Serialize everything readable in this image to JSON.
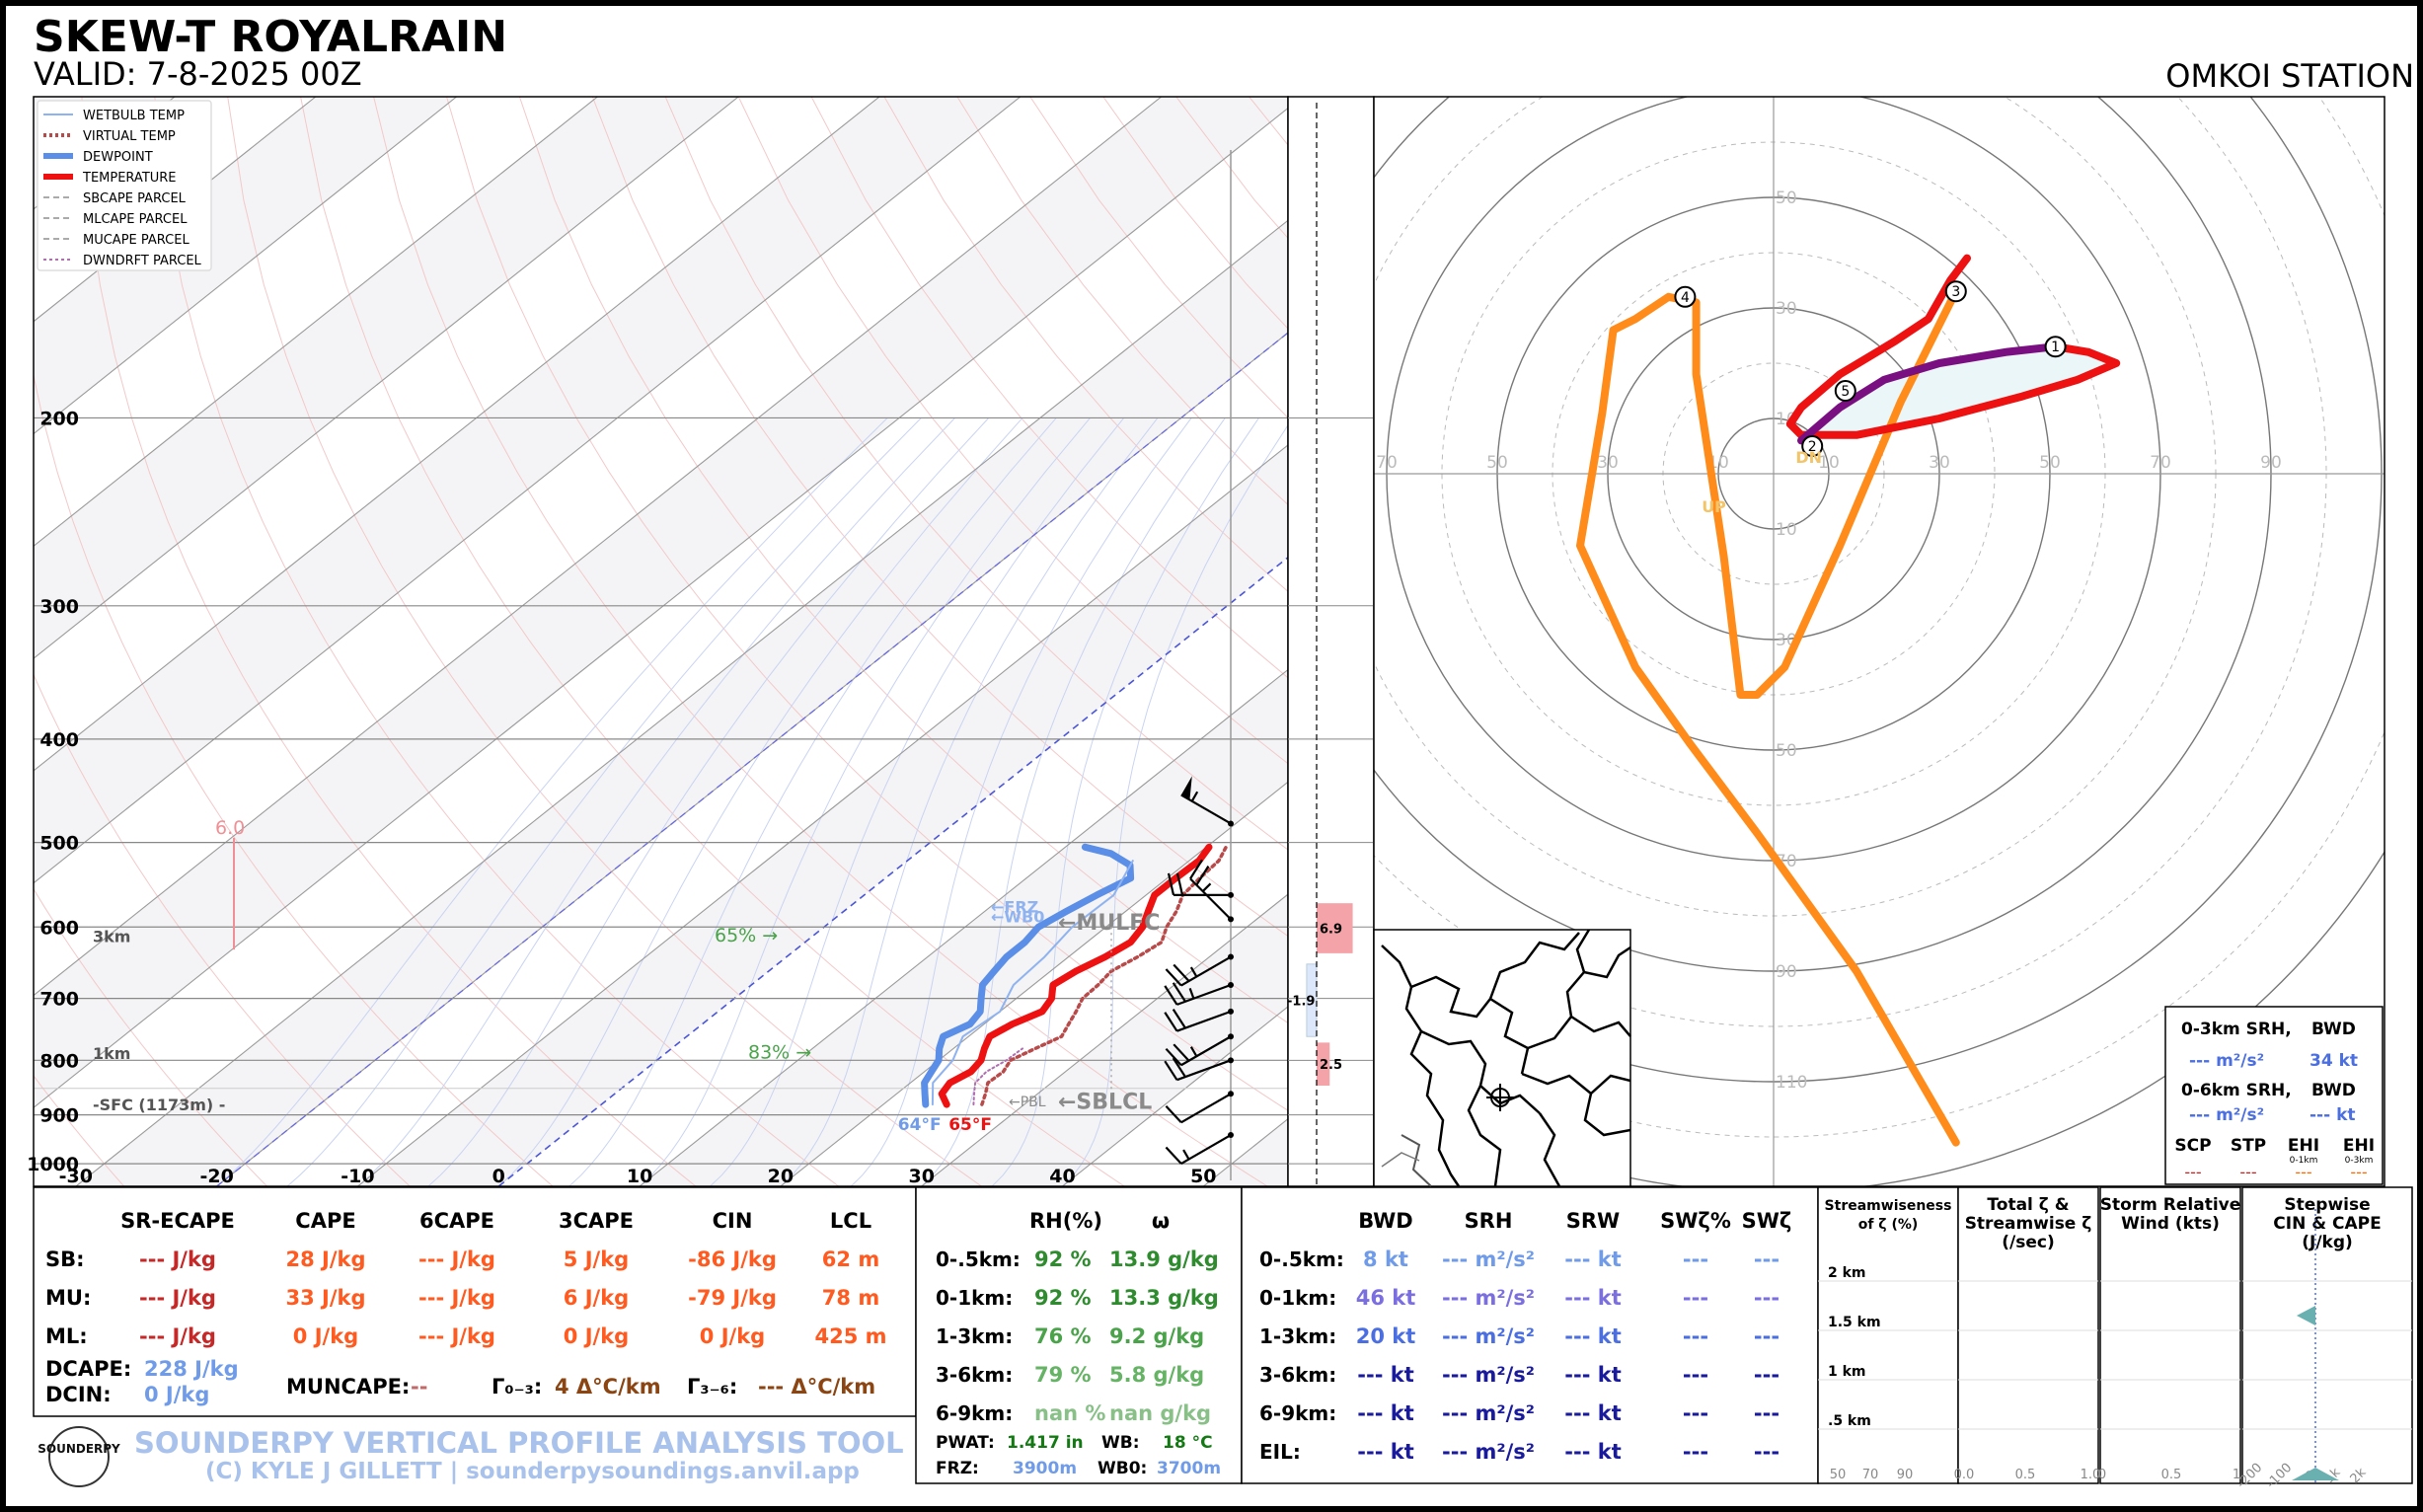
{
  "header": {
    "title": "SKEW-T ROYALRAIN",
    "valid": "VALID: 7-8-2025 00Z",
    "station": "OMKOI STATION"
  },
  "legend": [
    {
      "label": "WETBULB TEMP",
      "color": "#8fb3f0",
      "style": "solid",
      "width": 2
    },
    {
      "label": "VIRTUAL TEMP",
      "color": "#b84a4a",
      "style": "dotted",
      "width": 4
    },
    {
      "label": "DEWPOINT",
      "color": "#5b8ee6",
      "style": "solid",
      "width": 6
    },
    {
      "label": "TEMPERATURE",
      "color": "#ee1111",
      "style": "solid",
      "width": 6
    },
    {
      "label": "SBCAPE PARCEL",
      "color": "#aaaaaa",
      "style": "dashed",
      "width": 2
    },
    {
      "label": "MLCAPE PARCEL",
      "color": "#aaaaaa",
      "style": "dashed",
      "width": 2
    },
    {
      "label": "MUCAPE PARCEL",
      "color": "#aaaaaa",
      "style": "dashed",
      "width": 2
    },
    {
      "label": "DWNDRFT PARCEL",
      "color": "#b070b0",
      "style": "dotted",
      "width": 2
    }
  ],
  "chart_data": [
    {
      "type": "line",
      "chart": "skew-t",
      "pressure_ticks": [
        200,
        300,
        400,
        500,
        600,
        700,
        800,
        900,
        1000
      ],
      "temp_ticks": [
        -30,
        -20,
        -10,
        0,
        10,
        20,
        30,
        40,
        50
      ],
      "xlim": [
        -33,
        56
      ],
      "ylim": [
        1050,
        100
      ],
      "skew_deg_per_decade": 95,
      "series": [
        {
          "name": "TEMPERATURE",
          "color": "#ee1111",
          "points": [
            [
              880,
              24.5
            ],
            [
              860,
              23.2
            ],
            [
              840,
              22.8
            ],
            [
              820,
              23.3
            ],
            [
              800,
              23.0
            ],
            [
              780,
              22.2
            ],
            [
              760,
              21.5
            ],
            [
              740,
              22.0
            ],
            [
              720,
              23.0
            ],
            [
              700,
              22.5
            ],
            [
              680,
              21.4
            ],
            [
              660,
              21.8
            ],
            [
              640,
              22.6
            ],
            [
              620,
              23.1
            ],
            [
              600,
              22.6
            ],
            [
              580,
              21.6
            ],
            [
              560,
              20.6
            ],
            [
              540,
              20.6
            ],
            [
              520,
              20.7
            ],
            [
              505,
              20.2
            ]
          ]
        },
        {
          "name": "DEWPOINT",
          "color": "#5b8ee6",
          "points": [
            [
              880,
              23.0
            ],
            [
              860,
              22.0
            ],
            [
              840,
              21.0
            ],
            [
              820,
              20.5
            ],
            [
              800,
              20.0
            ],
            [
              780,
              19.0
            ],
            [
              760,
              18.2
            ],
            [
              740,
              19.0
            ],
            [
              720,
              18.6
            ],
            [
              700,
              17.5
            ],
            [
              680,
              16.4
            ],
            [
              660,
              16.0
            ],
            [
              640,
              15.6
            ],
            [
              620,
              15.6
            ],
            [
              600,
              15.2
            ],
            [
              580,
              15.8
            ],
            [
              560,
              16.5
            ],
            [
              540,
              17.4
            ],
            [
              525,
              16.2
            ],
            [
              512,
              13.8
            ],
            [
              505,
              11.4
            ]
          ]
        },
        {
          "name": "WETBULB TEMP",
          "color": "#8fb3f0",
          "points": [
            [
              880,
              23.5
            ],
            [
              840,
              21.6
            ],
            [
              800,
              21.0
            ],
            [
              760,
              19.6
            ],
            [
              720,
              20.0
            ],
            [
              680,
              18.6
            ],
            [
              640,
              18.3
            ],
            [
              600,
              17.6
            ],
            [
              560,
              17.7
            ],
            [
              520,
              16.0
            ]
          ]
        },
        {
          "name": "VIRTUAL TEMP",
          "color": "#b84a4a",
          "points": [
            [
              880,
              27.0
            ],
            [
              860,
              26.3
            ],
            [
              840,
              25.5
            ],
            [
              820,
              25.6
            ],
            [
              800,
              25.1
            ],
            [
              780,
              25.8
            ],
            [
              760,
              26.6
            ],
            [
              740,
              26.0
            ],
            [
              720,
              25.4
            ],
            [
              700,
              24.7
            ],
            [
              680,
              24.6
            ],
            [
              660,
              24.3
            ],
            [
              640,
              24.9
            ],
            [
              620,
              25.3
            ],
            [
              600,
              24.3
            ],
            [
              580,
              23.6
            ],
            [
              560,
              22.6
            ],
            [
              540,
              22.3
            ],
            [
              520,
              22.1
            ],
            [
              505,
              21.4
            ]
          ]
        },
        {
          "name": "DWNDRFT PARCEL",
          "color": "#b070b0",
          "points": [
            [
              880,
              26.4
            ],
            [
              860,
              25.5
            ],
            [
              840,
              24.6
            ],
            [
              820,
              24.4
            ],
            [
              800,
              24.8
            ],
            [
              780,
              24.9
            ]
          ]
        }
      ],
      "surface_labels": {
        "temp": "65°F",
        "dew": "64°F"
      },
      "height_labels": [
        {
          "label": "3km",
          "p": 612
        },
        {
          "label": "1km",
          "p": 788
        },
        {
          "label": "-SFC (1173m) -",
          "p": 880
        }
      ],
      "rh_labels": [
        {
          "label": "65% →",
          "p": 611
        },
        {
          "label": "83% →",
          "p": 787
        }
      ],
      "level_labels": [
        {
          "label": "←FRZ",
          "p": 575
        },
        {
          "label": "←WB0",
          "p": 587
        },
        {
          "label": "←MULFC",
          "p": 594
        },
        {
          "label": "←PBL",
          "p": 875
        },
        {
          "label": "←SBLCL",
          "p": 875
        }
      ],
      "lapse_marker": {
        "value": "6.0",
        "p_top": 495,
        "p_bot": 630
      },
      "wind_barbs": [
        {
          "p": 480,
          "kt": 55,
          "dir": 300
        },
        {
          "p": 560,
          "kt": 20,
          "dir": 270
        },
        {
          "p": 590,
          "kt": 25,
          "dir": 315
        },
        {
          "p": 640,
          "kt": 25,
          "dir": 240
        },
        {
          "p": 680,
          "kt": 25,
          "dir": 250
        },
        {
          "p": 720,
          "kt": 20,
          "dir": 250
        },
        {
          "p": 760,
          "kt": 25,
          "dir": 240
        },
        {
          "p": 800,
          "kt": 20,
          "dir": 250
        },
        {
          "p": 860,
          "kt": 10,
          "dir": 240
        },
        {
          "p": 940,
          "kt": 15,
          "dir": 240
        }
      ]
    },
    {
      "type": "bar",
      "chart": "lapse-rate-strip",
      "bars": [
        {
          "p_top": 570,
          "p_bot": 635,
          "value": 6.9,
          "label": "6.9",
          "color": "#f4a3a8"
        },
        {
          "p_top": 650,
          "p_bot": 760,
          "value": -1.9,
          "label": "-1.9",
          "color": "#dce7fb"
        },
        {
          "p_top": 770,
          "p_bot": 845,
          "value": 2.5,
          "label": "2.5",
          "color": "#f4a3a8"
        }
      ]
    },
    {
      "type": "line",
      "chart": "hodograph",
      "ring_labels": [
        "10",
        "30",
        "50",
        "70",
        "90",
        "110"
      ],
      "axis_labels": [
        "70",
        "50",
        "30",
        "10",
        "10",
        "30",
        "50",
        "70",
        "90"
      ],
      "ylabels": [
        "50",
        "30",
        "10",
        "10",
        "30",
        "50",
        "70",
        "90",
        "110"
      ],
      "xlim": [
        -73,
        113
      ],
      "ylim": [
        -118,
        56
      ],
      "series": [
        {
          "name": "0-1 km",
          "color": "#7a0f82",
          "points": [
            [
              5,
              6
            ],
            [
              12,
              12
            ],
            [
              20,
              17
            ],
            [
              30,
              20
            ],
            [
              42,
              22
            ],
            [
              51,
              23
            ]
          ]
        },
        {
          "name": "1-3 km",
          "color": "#ee1111",
          "points": [
            [
              51,
              23
            ],
            [
              57,
              22
            ],
            [
              62,
              20
            ],
            [
              55,
              17
            ],
            [
              45,
              14
            ],
            [
              30,
              10
            ],
            [
              15,
              7
            ],
            [
              5,
              7
            ],
            [
              3,
              9
            ],
            [
              5,
              12
            ],
            [
              12,
              18
            ],
            [
              22,
              24
            ],
            [
              28,
              28
            ],
            [
              32,
              35
            ],
            [
              35,
              39
            ]
          ]
        },
        {
          "name": "storm motion",
          "color": "#ff8c1a",
          "points": [
            [
              33,
              33
            ],
            [
              23,
              13
            ],
            [
              12,
              -13
            ],
            [
              2,
              -35
            ],
            [
              -3,
              -40
            ],
            [
              -6,
              -40
            ],
            [
              -9,
              -15
            ],
            [
              -14,
              18
            ],
            [
              -14,
              31
            ],
            [
              -19,
              32
            ],
            [
              -25,
              28
            ],
            [
              -29,
              26
            ],
            [
              -31,
              11
            ],
            [
              -35,
              -13
            ],
            [
              -25,
              -35
            ],
            [
              -15,
              -49
            ],
            [
              -3,
              -65
            ],
            [
              15,
              -90
            ],
            [
              33,
              -121
            ]
          ]
        }
      ],
      "markers": [
        {
          "label": "1",
          "u": 51,
          "v": 23
        },
        {
          "label": "2",
          "u": 7,
          "v": 5
        },
        {
          "label": "3",
          "u": 33,
          "v": 33
        },
        {
          "label": "4",
          "u": -16,
          "v": 32
        },
        {
          "label": "5",
          "u": 13,
          "v": 15
        }
      ],
      "motion_labels": {
        "up": "UP",
        "dn": "DN"
      }
    }
  ],
  "hodo_table": {
    "row1_label": "0-3km SRH,",
    "row1_bwd": "BWD",
    "row1_val": "--- m²/s²",
    "row1_bwd_val": "34 kt",
    "row2_label": "0-6km SRH,",
    "row2_bwd": "BWD",
    "row2_val": "--- m²/s²",
    "row2_bwd_val": "--- kt",
    "idx_labels": [
      "SCP",
      "STP",
      "EHI",
      "EHI"
    ],
    "idx_sub": [
      "",
      "",
      "0-1km",
      "0-3km"
    ],
    "idx_vals": [
      "---",
      "---",
      "---",
      "---"
    ]
  },
  "thermo": {
    "headers": [
      "SR-ECAPE",
      "CAPE",
      "6CAPE",
      "3CAPE",
      "CIN",
      "LCL"
    ],
    "rows": [
      {
        "label": "SB:",
        "vals": [
          "--- J/kg",
          "28 J/kg",
          "--- J/kg",
          "5 J/kg",
          "-86 J/kg",
          "62 m"
        ]
      },
      {
        "label": "MU:",
        "vals": [
          "--- J/kg",
          "33 J/kg",
          "--- J/kg",
          "6 J/kg",
          "-79 J/kg",
          "78 m"
        ]
      },
      {
        "label": "ML:",
        "vals": [
          "--- J/kg",
          "0 J/kg",
          "--- J/kg",
          "0 J/kg",
          "0 J/kg",
          "425 m"
        ]
      }
    ],
    "dcape_label": "DCAPE:",
    "dcape": "228 J/kg",
    "dcin_label": "DCIN:",
    "dcin": "0 J/kg",
    "muncape_label": "MUNCAPE:",
    "muncape": "--",
    "g03_label": "Γ₀₋₃:",
    "g03": "4 Δ°C/km",
    "g36_label": "Γ₃₋₆:",
    "g36": "--- Δ°C/km"
  },
  "moisture": {
    "headers": [
      "RH(%)",
      "ω"
    ],
    "rows": [
      {
        "label": "0-.5km:",
        "rh": "92 %",
        "w": "13.9 g/kg"
      },
      {
        "label": "0-1km:",
        "rh": "92 %",
        "w": "13.3 g/kg"
      },
      {
        "label": "1-3km:",
        "rh": "76 %",
        "w": "9.2 g/kg"
      },
      {
        "label": "3-6km:",
        "rh": "79 %",
        "w": "5.8 g/kg"
      },
      {
        "label": "6-9km:",
        "rh": "nan %",
        "w": "nan g/kg"
      }
    ],
    "pwat_label": "PWAT:",
    "pwat": "1.417 in",
    "wb_label": "WB:",
    "wb": "18 °C",
    "frz_label": "FRZ:",
    "frz": "3900m",
    "wb0_label": "WB0:",
    "wb0": "3700m"
  },
  "kinematic": {
    "headers": [
      "BWD",
      "SRH",
      "SRW",
      "SWζ%",
      "SWζ"
    ],
    "rows": [
      {
        "label": "0-.5km:",
        "vals": [
          "8 kt",
          "--- m²/s²",
          "--- kt",
          "---",
          "---"
        ]
      },
      {
        "label": "0-1km:",
        "vals": [
          "46 kt",
          "--- m²/s²",
          "--- kt",
          "---",
          "---"
        ]
      },
      {
        "label": "1-3km:",
        "vals": [
          "20 kt",
          "--- m²/s²",
          "--- kt",
          "---",
          "---"
        ]
      },
      {
        "label": "3-6km:",
        "vals": [
          "--- kt",
          "--- m²/s²",
          "--- kt",
          "---",
          "---"
        ]
      },
      {
        "label": "6-9km:",
        "vals": [
          "--- kt",
          "--- m²/s²",
          "--- kt",
          "---",
          "---"
        ]
      },
      {
        "label": "EIL:",
        "vals": [
          "--- kt",
          "--- m²/s²",
          "--- kt",
          "---",
          "---"
        ]
      }
    ]
  },
  "mini_panels": {
    "titles": [
      "Streamwiseness of ζ (%)",
      "Total ζ & Streamwise ζ (/sec)",
      "Storm Relative Wind (kts)",
      "Stepwise CIN & CAPE (J/kg)"
    ],
    "height_labels": [
      "2 km",
      "1.5 km",
      "1 km",
      ".5 km"
    ],
    "p1_ticks": [
      "50",
      "70",
      "90"
    ],
    "p2_ticks": [
      "0.0",
      "0.5",
      "1.0"
    ],
    "p3_ticks": [
      "0",
      "0.5",
      "1"
    ],
    "p4_ticks": [
      "-200",
      "-100",
      "0",
      "1k",
      "2k"
    ]
  },
  "footer": {
    "logo": "SOUNDERPY",
    "title": "SOUNDERPY VERTICAL PROFILE ANALYSIS TOOL",
    "credit": "(C) KYLE J GILLETT | sounderpysoundings.anvil.app"
  }
}
